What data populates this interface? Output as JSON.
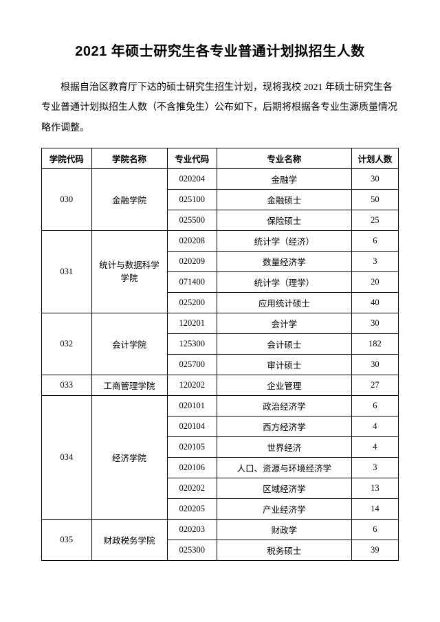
{
  "title": "2021 年硕士研究生各专业普通计划拟招生人数",
  "intro": "根据自治区教育厅下达的硕士研究生招生计划，现将我校 2021 年硕士研究生各专业普通计划拟招生人数（不含推免生）公布如下，后期将根据各专业生源质量情况略作调整。",
  "headers": {
    "dept_code": "学院代码",
    "dept_name": "学院名称",
    "major_code": "专业代码",
    "major_name": "专业名称",
    "count": "计划人数"
  },
  "departments": [
    {
      "code": "030",
      "name": "金融学院",
      "majors": [
        {
          "code": "020204",
          "name": "金融学",
          "count": "30"
        },
        {
          "code": "025100",
          "name": "金融硕士",
          "count": "50"
        },
        {
          "code": "025500",
          "name": "保险硕士",
          "count": "25"
        }
      ]
    },
    {
      "code": "031",
      "name": "统计与数据科学学院",
      "majors": [
        {
          "code": "020208",
          "name": "统计学（经济）",
          "count": "6"
        },
        {
          "code": "020209",
          "name": "数量经济学",
          "count": "3"
        },
        {
          "code": "071400",
          "name": "统计学（理学）",
          "count": "20"
        },
        {
          "code": "025200",
          "name": "应用统计硕士",
          "count": "40"
        }
      ]
    },
    {
      "code": "032",
      "name": "会计学院",
      "majors": [
        {
          "code": "120201",
          "name": "会计学",
          "count": "30"
        },
        {
          "code": "125300",
          "name": "会计硕士",
          "count": "182"
        },
        {
          "code": "025700",
          "name": "审计硕士",
          "count": "30"
        }
      ]
    },
    {
      "code": "033",
      "name": "工商管理学院",
      "majors": [
        {
          "code": "120202",
          "name": "企业管理",
          "count": "27"
        }
      ]
    },
    {
      "code": "034",
      "name": "经济学院",
      "majors": [
        {
          "code": "020101",
          "name": "政治经济学",
          "count": "6"
        },
        {
          "code": "020104",
          "name": "西方经济学",
          "count": "4"
        },
        {
          "code": "020105",
          "name": "世界经济",
          "count": "4"
        },
        {
          "code": "020106",
          "name": "人口、资源与环境经济学",
          "count": "3"
        },
        {
          "code": "020202",
          "name": "区域经济学",
          "count": "13"
        },
        {
          "code": "020205",
          "name": "产业经济学",
          "count": "14"
        }
      ]
    },
    {
      "code": "035",
      "name": "财政税务学院",
      "majors": [
        {
          "code": "020203",
          "name": "财政学",
          "count": "6"
        },
        {
          "code": "025300",
          "name": "税务硕士",
          "count": "39"
        }
      ]
    }
  ]
}
